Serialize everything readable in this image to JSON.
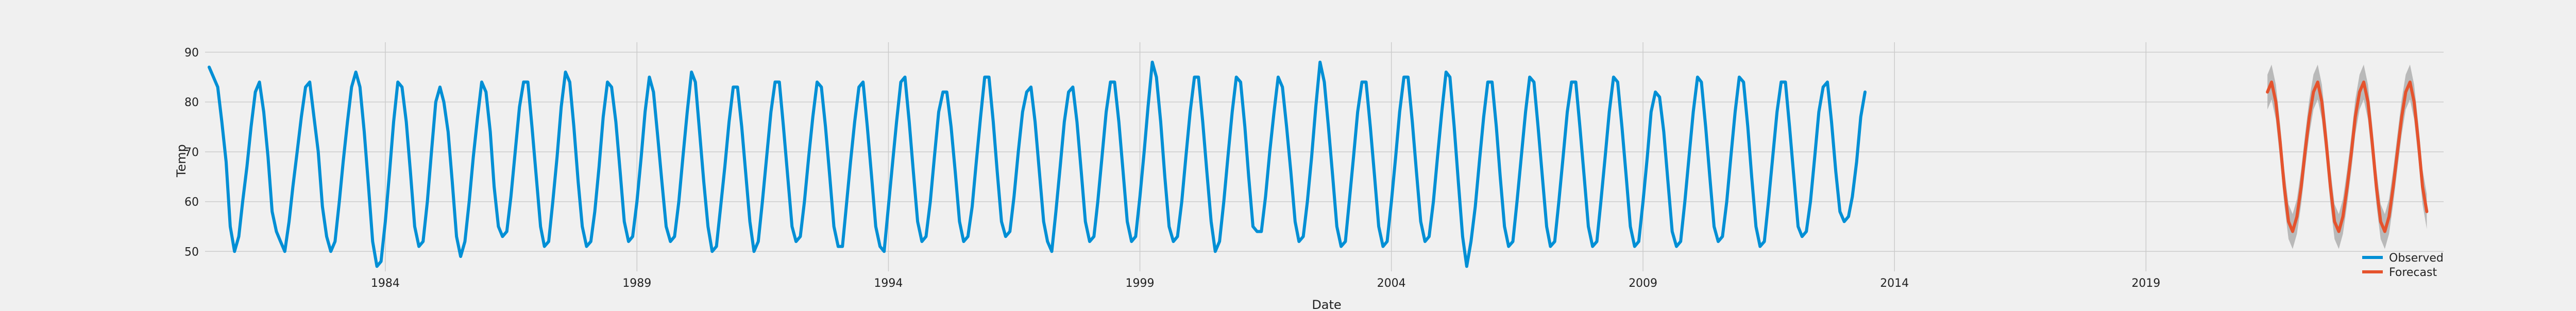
{
  "chart_data": {
    "type": "line",
    "title": "",
    "xlabel": "Date",
    "ylabel": "Temp",
    "x_range": [
      "1980-06-01",
      "2024-12-01"
    ],
    "ylim": [
      46,
      92
    ],
    "y_ticks": [
      50,
      60,
      70,
      80,
      90
    ],
    "x_ticks": [
      {
        "date": "1984-01-01",
        "label": "1984"
      },
      {
        "date": "1989-01-01",
        "label": "1989"
      },
      {
        "date": "1994-01-01",
        "label": "1994"
      },
      {
        "date": "1999-01-01",
        "label": "1999"
      },
      {
        "date": "2004-01-01",
        "label": "2004"
      },
      {
        "date": "2009-01-01",
        "label": "2009"
      },
      {
        "date": "2014-01-01",
        "label": "2014"
      },
      {
        "date": "2019-01-01",
        "label": "2019"
      }
    ],
    "grid": true,
    "legend_position": "bottom-right",
    "series": [
      {
        "name": "Observed",
        "color": "#008fd5",
        "x_start": "1980-07-01",
        "x_step_months": 1,
        "values": [
          87,
          85,
          83,
          76,
          68,
          55,
          50,
          53,
          60,
          67,
          75,
          82,
          84,
          78,
          69,
          58,
          54,
          52,
          50,
          56,
          63,
          70,
          77,
          83,
          84,
          77,
          70,
          59,
          53,
          50,
          52,
          60,
          68,
          76,
          83,
          86,
          83,
          74,
          63,
          52,
          47,
          48,
          56,
          66,
          76,
          84,
          83,
          76,
          66,
          55,
          51,
          52,
          60,
          70,
          80,
          83,
          80,
          74,
          64,
          53,
          49,
          52,
          60,
          69,
          77,
          84,
          82,
          74,
          63,
          55,
          53,
          54,
          61,
          70,
          79,
          84,
          84,
          75,
          65,
          55,
          51,
          52,
          60,
          69,
          79,
          86,
          84,
          75,
          64,
          55,
          51,
          52,
          58,
          67,
          77,
          84,
          83,
          76,
          66,
          56,
          52,
          53,
          60,
          69,
          78,
          85,
          82,
          73,
          64,
          55,
          52,
          53,
          60,
          69,
          78,
          86,
          84,
          74,
          64,
          55,
          50,
          51,
          59,
          67,
          76,
          83,
          83,
          75,
          66,
          56,
          50,
          52,
          60,
          69,
          78,
          84,
          84,
          75,
          65,
          55,
          52,
          53,
          60,
          69,
          77,
          84,
          83,
          75,
          65,
          55,
          51,
          51,
          59,
          68,
          76,
          83,
          84,
          75,
          65,
          55,
          51,
          50,
          59,
          68,
          76,
          84,
          85,
          76,
          66,
          56,
          52,
          53,
          60,
          69,
          78,
          82,
          82,
          75,
          66,
          56,
          52,
          53,
          59,
          68,
          77,
          85,
          85,
          76,
          66,
          56,
          53,
          54,
          61,
          70,
          78,
          82,
          83,
          76,
          66,
          56,
          52,
          50,
          58,
          67,
          76,
          82,
          83,
          76,
          66,
          56,
          52,
          53,
          60,
          69,
          78,
          84,
          84,
          76,
          66,
          56,
          52,
          53,
          61,
          70,
          79,
          88,
          85,
          76,
          65,
          55,
          52,
          53,
          60,
          69,
          78,
          85,
          85,
          76,
          66,
          56,
          50,
          52,
          60,
          69,
          78,
          85,
          84,
          75,
          65,
          55,
          54,
          54,
          61,
          70,
          78,
          85,
          83,
          75,
          66,
          56,
          52,
          53,
          60,
          69,
          79,
          88,
          84,
          75,
          65,
          55,
          51,
          52,
          60,
          69,
          78,
          84,
          84,
          75,
          65,
          55,
          51,
          52,
          60,
          69,
          78,
          85,
          85,
          76,
          66,
          56,
          52,
          53,
          60,
          69,
          78,
          86,
          85,
          75,
          64,
          53,
          47,
          52,
          59,
          68,
          77,
          84,
          84,
          75,
          65,
          55,
          51,
          52,
          60,
          69,
          78,
          85,
          84,
          75,
          65,
          55,
          51,
          52,
          60,
          69,
          78,
          84,
          84,
          75,
          65,
          55,
          51,
          52,
          60,
          69,
          78,
          85,
          84,
          75,
          65,
          55,
          51,
          52,
          60,
          69,
          78,
          82,
          81,
          74,
          64,
          54,
          51,
          52,
          60,
          69,
          78,
          85,
          84,
          75,
          65,
          55,
          52,
          53,
          60,
          69,
          78,
          85,
          84,
          75,
          65,
          55,
          51,
          52,
          60,
          69,
          78,
          84,
          84,
          75,
          65,
          55,
          53,
          54,
          60,
          69,
          78,
          83,
          84,
          76,
          66,
          58,
          56,
          57,
          61,
          68,
          77,
          82
        ]
      },
      {
        "name": "Forecast",
        "color": "#e5532d",
        "band_color": "#b3b3b3",
        "band_halfwidth": 3.5,
        "x_start": "2021-06-01",
        "x_step_months": 1,
        "values": [
          82,
          84,
          80,
          72,
          63,
          56,
          54,
          57,
          63,
          70,
          77,
          82,
          84,
          80,
          72,
          63,
          56,
          54,
          57,
          63,
          70,
          77,
          82,
          84,
          80,
          72,
          63,
          56,
          54,
          57,
          63,
          70,
          77,
          82,
          84,
          80,
          72,
          63,
          58
        ]
      }
    ]
  }
}
